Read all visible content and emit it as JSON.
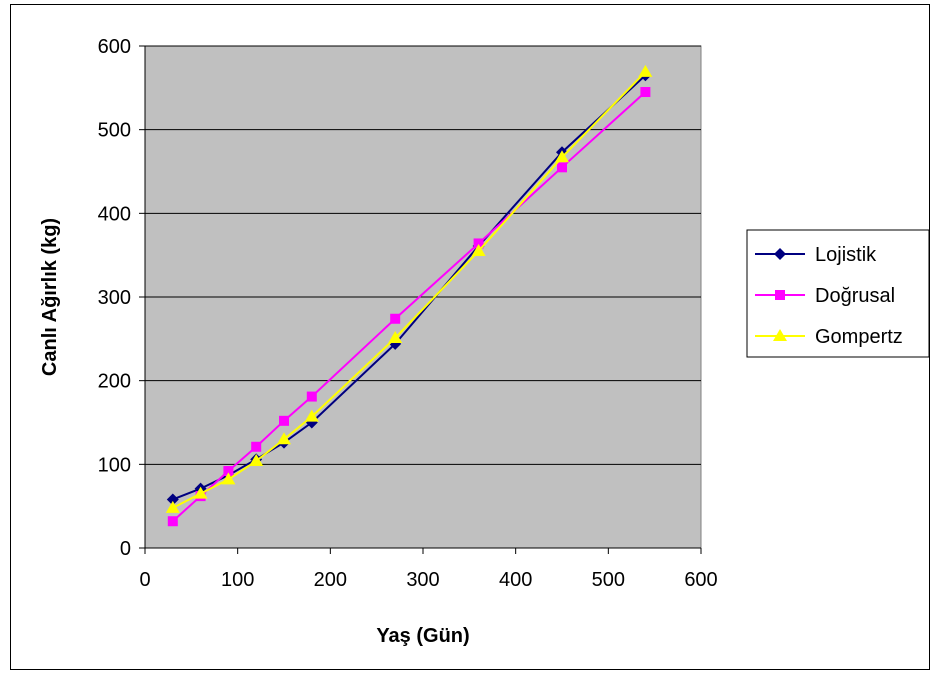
{
  "chart_data": {
    "type": "line",
    "title": "",
    "xlabel": "Yaş (Gün)",
    "ylabel": "Canlı Ağırlık (kg)",
    "xlim": [
      0,
      600
    ],
    "ylim": [
      0,
      600
    ],
    "xticks": [
      "0",
      "100",
      "200",
      "300",
      "400",
      "500",
      "600"
    ],
    "yticks": [
      "0",
      "100",
      "200",
      "300",
      "400",
      "500",
      "600"
    ],
    "grid": "horizontal",
    "plot_background": "#c0c0c0",
    "legend_position": "right",
    "x": [
      30,
      60,
      90,
      120,
      150,
      180,
      270,
      360,
      450,
      540
    ],
    "series": [
      {
        "name": "Lojistik",
        "color": "#000080",
        "marker": "diamond",
        "values": [
          58,
          71,
          87,
          106,
          126,
          150,
          244,
          361,
          473,
          565
        ]
      },
      {
        "name": "Doğrusal",
        "color": "#ff00ff",
        "marker": "square",
        "values": [
          32,
          62,
          92,
          121,
          152,
          181,
          274,
          364,
          455,
          545
        ]
      },
      {
        "name": "Gompertz",
        "color": "#ffff00",
        "marker": "triangle",
        "values": [
          48,
          65,
          82,
          104,
          130,
          157,
          251,
          355,
          467,
          569
        ]
      }
    ]
  }
}
